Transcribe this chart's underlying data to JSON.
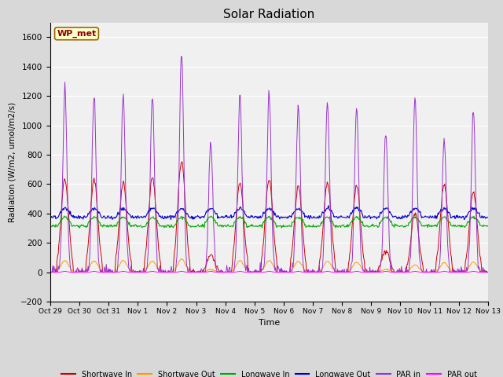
{
  "title": "Solar Radiation",
  "ylabel": "Radiation (W/m2, umol/m2/s)",
  "xlabel": "Time",
  "ylim": [
    -200,
    1700
  ],
  "yticks": [
    -200,
    0,
    200,
    400,
    600,
    800,
    1000,
    1200,
    1400,
    1600
  ],
  "xtick_labels": [
    "Oct 29",
    "Oct 30",
    "Oct 31",
    "Nov 1",
    "Nov 2",
    "Nov 3",
    "Nov 4",
    "Nov 5",
    "Nov 6",
    "Nov 7",
    "Nov 8",
    "Nov 9",
    "Nov 10",
    "Nov 11",
    "Nov 12",
    "Nov 13"
  ],
  "station_label": "WP_met",
  "station_label_bg": "#ffffcc",
  "station_label_border": "#996600",
  "fig_bg": "#d8d8d8",
  "plot_bg": "#f0f0f0",
  "series": {
    "shortwave_in": {
      "color": "#cc0000",
      "label": "Shortwave In"
    },
    "shortwave_out": {
      "color": "#ff9900",
      "label": "Shortwave Out"
    },
    "longwave_in": {
      "color": "#00aa00",
      "label": "Longwave In"
    },
    "longwave_out": {
      "color": "#0000cc",
      "label": "Longwave Out"
    },
    "par_in": {
      "color": "#9933cc",
      "label": "PAR in"
    },
    "par_out": {
      "color": "#ff00ff",
      "label": "PAR out"
    }
  },
  "num_days": 15,
  "sw_in_peaks": [
    640,
    630,
    610,
    650,
    760,
    120,
    610,
    630,
    580,
    610,
    590,
    150,
    410,
    600,
    550
  ],
  "sw_out_peaks": [
    80,
    75,
    80,
    75,
    90,
    20,
    80,
    80,
    75,
    75,
    70,
    20,
    50,
    65,
    70
  ],
  "par_in_peaks": [
    1240,
    1210,
    1200,
    1210,
    1510,
    890,
    1210,
    1210,
    1140,
    1160,
    1130,
    960,
    1190,
    900,
    1100
  ],
  "lw_in_base": 315,
  "lw_out_base": 375,
  "lw_in_day_boost": 60,
  "lw_out_day_boost": 60
}
